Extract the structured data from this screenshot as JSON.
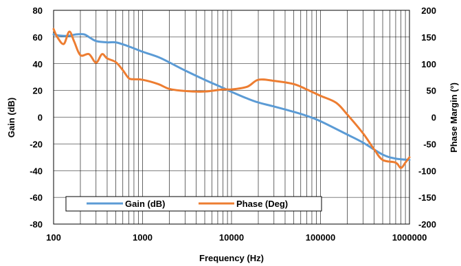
{
  "chart_data": {
    "type": "line",
    "xlabel": "Frequency (Hz)",
    "ylabel": "Gain (dB)",
    "y2label": "Phase Margin (°)",
    "x_scale": "log",
    "xlim": [
      100,
      1000000
    ],
    "ylim": [
      -80,
      80
    ],
    "y2lim": [
      -200,
      200
    ],
    "x_ticks": [
      "100",
      "1000",
      "10000",
      "100000",
      "1000000"
    ],
    "y_ticks": [
      "80",
      "60",
      "40",
      "20",
      "0",
      "-20",
      "-40",
      "-60",
      "-80"
    ],
    "y2_ticks": [
      "200",
      "150",
      "100",
      "50",
      "0",
      "-50",
      "-100",
      "-150",
      "-200"
    ],
    "grid": true,
    "legend_placement": "bottom",
    "series": [
      {
        "name": "Gain (dB)",
        "axis": "left",
        "color": "#5B9BD5",
        "x": [
          100,
          120,
          150,
          180,
          220,
          250,
          300,
          400,
          500,
          700,
          1000,
          1500,
          2000,
          3000,
          5000,
          8000,
          10000,
          15000,
          20000,
          30000,
          50000,
          70000,
          100000,
          200000,
          300000,
          500000,
          700000,
          1000000
        ],
        "y": [
          62,
          61,
          61,
          62,
          62,
          60,
          57,
          56,
          56,
          53,
          49,
          45,
          41,
          35,
          28,
          22,
          19,
          14,
          11,
          8,
          4,
          1,
          -3,
          -13,
          -19,
          -28,
          -31,
          -32
        ]
      },
      {
        "name": "Phase (Deg)",
        "axis": "right",
        "color": "#ED7D31",
        "x": [
          100,
          110,
          130,
          150,
          170,
          200,
          250,
          300,
          350,
          400,
          500,
          600,
          700,
          800,
          1000,
          1500,
          2000,
          3000,
          5000,
          8000,
          10000,
          15000,
          20000,
          30000,
          50000,
          70000,
          100000,
          150000,
          200000,
          300000,
          400000,
          500000,
          700000,
          800000,
          900000,
          1000000
        ],
        "y": [
          165,
          150,
          137,
          160,
          142,
          116,
          118,
          102,
          118,
          110,
          103,
          88,
          73,
          71,
          70,
          62,
          53,
          49,
          48,
          52,
          52,
          57,
          70,
          68,
          62,
          52,
          40,
          27,
          5,
          -30,
          -60,
          -80,
          -85,
          -95,
          -85,
          -75
        ]
      }
    ]
  }
}
